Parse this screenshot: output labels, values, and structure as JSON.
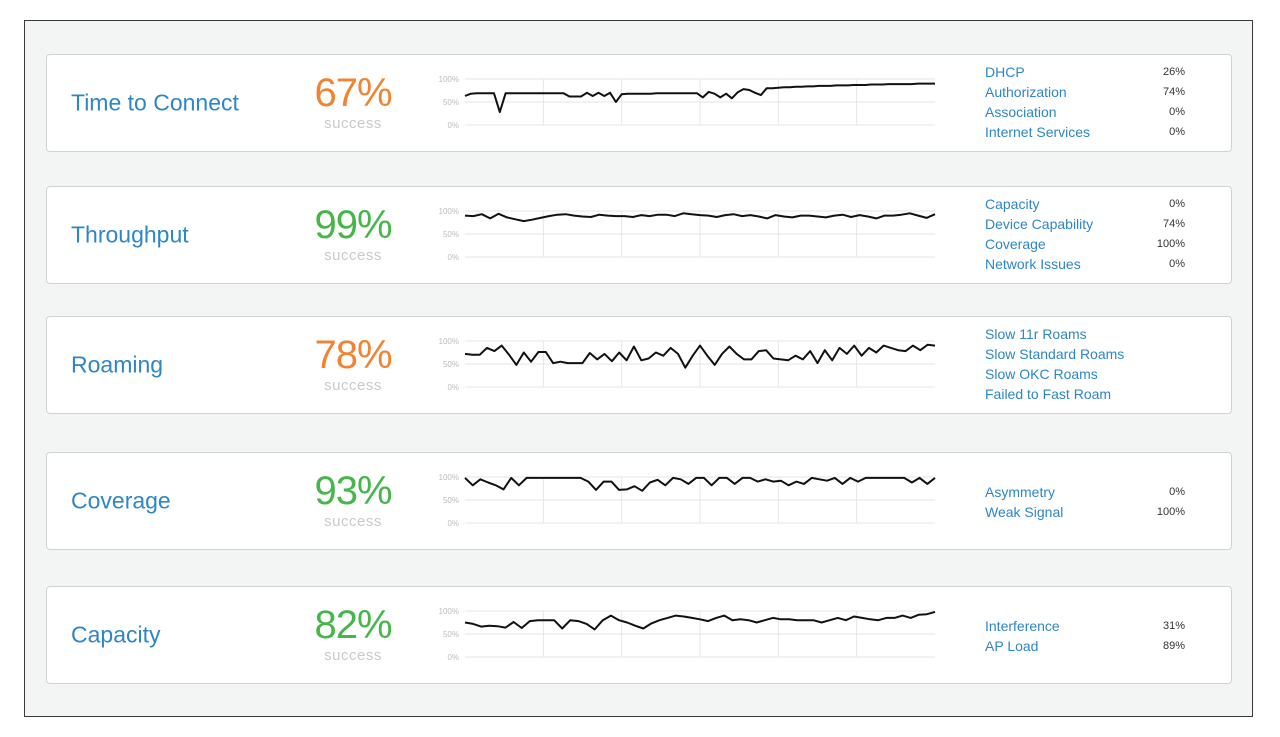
{
  "axis_labels": [
    "100%",
    "50%",
    "0%"
  ],
  "cards": [
    {
      "name": "Time to Connect",
      "pct": "67%",
      "sub": "success",
      "pct_color": "#f08435",
      "series": [
        63,
        68,
        69,
        69,
        69,
        69,
        28,
        69,
        69,
        69,
        69,
        69,
        69,
        69,
        69,
        69,
        69,
        69,
        62,
        62,
        62,
        70,
        63,
        70,
        63,
        70,
        50,
        67,
        68,
        68,
        68,
        68,
        68,
        69,
        69,
        69,
        69,
        69,
        69,
        69,
        69,
        60,
        72,
        68,
        60,
        68,
        58,
        71,
        78,
        76,
        70,
        65,
        80,
        80,
        81,
        82,
        82,
        83,
        83,
        84,
        84,
        85,
        85,
        85,
        86,
        86,
        86,
        87,
        87,
        87,
        88,
        88,
        88,
        89,
        89,
        89,
        89,
        89,
        90,
        90,
        90,
        90
      ],
      "reasons": [
        {
          "label": "DHCP",
          "value": "26%"
        },
        {
          "label": "Authorization",
          "value": "74%"
        },
        {
          "label": "Association",
          "value": "0%"
        },
        {
          "label": "Internet Services",
          "value": "0%"
        }
      ]
    },
    {
      "name": "Throughput",
      "pct": "99%",
      "sub": "success",
      "pct_color": "#46b64a",
      "series": [
        90,
        89,
        93,
        84,
        94,
        86,
        82,
        78,
        81,
        85,
        89,
        92,
        93,
        90,
        88,
        87,
        92,
        90,
        89,
        89,
        87,
        91,
        89,
        92,
        92,
        89,
        95,
        93,
        91,
        90,
        87,
        91,
        93,
        89,
        91,
        88,
        84,
        91,
        88,
        86,
        90,
        90,
        88,
        86,
        90,
        92,
        87,
        91,
        88,
        84,
        90,
        90,
        92,
        95,
        90,
        85,
        93
      ],
      "reasons": [
        {
          "label": "Capacity",
          "value": "0%"
        },
        {
          "label": "Device Capability",
          "value": "74%"
        },
        {
          "label": "Coverage",
          "value": "100%"
        },
        {
          "label": "Network Issues",
          "value": "0%"
        }
      ]
    },
    {
      "name": "Roaming",
      "pct": "78%",
      "sub": "success",
      "pct_color": "#f08435",
      "series": [
        72,
        70,
        70,
        85,
        78,
        90,
        70,
        48,
        75,
        55,
        76,
        76,
        52,
        55,
        52,
        52,
        52,
        74,
        60,
        72,
        56,
        75,
        58,
        88,
        58,
        62,
        75,
        68,
        85,
        72,
        42,
        68,
        90,
        68,
        48,
        72,
        88,
        72,
        60,
        60,
        78,
        80,
        62,
        60,
        58,
        68,
        60,
        78,
        52,
        80,
        58,
        85,
        72,
        90,
        68,
        85,
        75,
        90,
        85,
        80,
        78,
        90,
        80,
        92,
        90
      ],
      "reasons": [
        {
          "label": "Slow 11r Roams",
          "value": ""
        },
        {
          "label": "Slow Standard Roams",
          "value": ""
        },
        {
          "label": "Slow OKC Roams",
          "value": ""
        },
        {
          "label": "Failed to Fast Roam",
          "value": ""
        }
      ]
    },
    {
      "name": "Coverage",
      "pct": "93%",
      "sub": "success",
      "pct_color": "#46b64a",
      "series": [
        98,
        82,
        95,
        88,
        82,
        73,
        98,
        82,
        98,
        98,
        98,
        98,
        98,
        98,
        98,
        98,
        90,
        72,
        90,
        90,
        72,
        73,
        80,
        70,
        88,
        94,
        82,
        98,
        95,
        85,
        98,
        98,
        82,
        98,
        98,
        85,
        98,
        98,
        90,
        95,
        90,
        92,
        82,
        90,
        85,
        98,
        95,
        92,
        98,
        85,
        98,
        90,
        98,
        98,
        98,
        98,
        98,
        98,
        88,
        98,
        85,
        98
      ],
      "reasons": [
        {
          "label": "Asymmetry",
          "value": "0%"
        },
        {
          "label": "Weak Signal",
          "value": "100%"
        }
      ]
    },
    {
      "name": "Capacity",
      "pct": "82%",
      "sub": "success",
      "pct_color": "#46b64a",
      "series": [
        75,
        72,
        66,
        68,
        67,
        64,
        76,
        63,
        78,
        80,
        80,
        80,
        62,
        80,
        78,
        72,
        60,
        80,
        90,
        80,
        75,
        68,
        62,
        73,
        80,
        85,
        90,
        88,
        85,
        82,
        78,
        85,
        90,
        80,
        82,
        80,
        75,
        80,
        85,
        82,
        82,
        80,
        80,
        80,
        75,
        80,
        85,
        80,
        88,
        85,
        82,
        80,
        85,
        85,
        90,
        85,
        92,
        93,
        98
      ],
      "reasons": [
        {
          "label": "Interference",
          "value": "31%"
        },
        {
          "label": "AP Load",
          "value": "89%"
        }
      ]
    }
  ]
}
